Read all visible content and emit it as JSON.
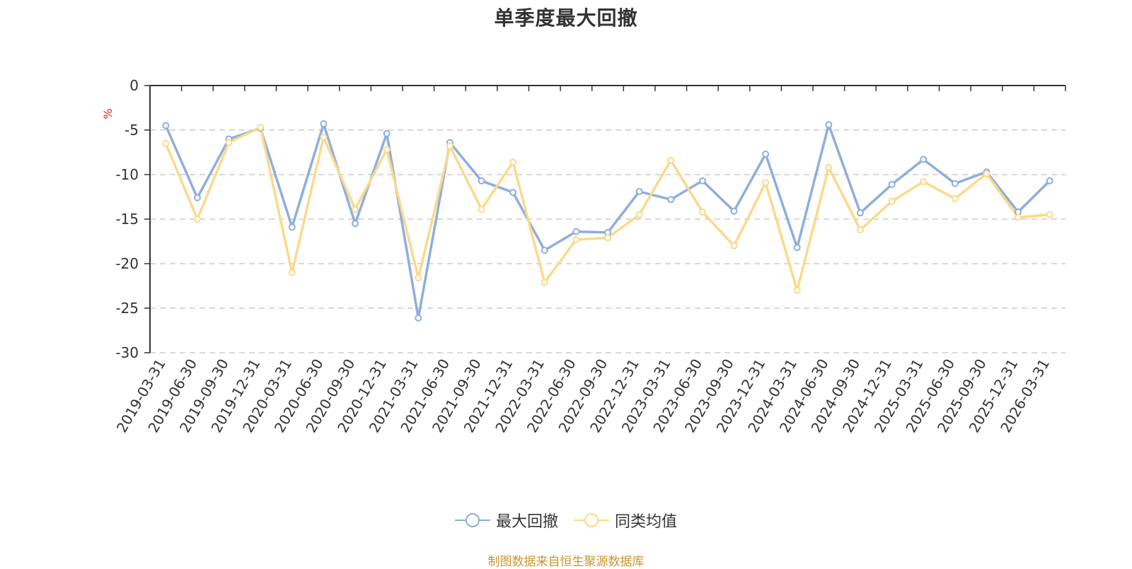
{
  "chart_data": {
    "type": "line",
    "title": "单季度最大回撤",
    "ylabel": "%",
    "ylim": [
      -30,
      0
    ],
    "yticks": [
      0,
      -5,
      -10,
      -15,
      -20,
      -25,
      -30
    ],
    "grid": true,
    "legend_position": "bottom",
    "categories": [
      "2019-03-31",
      "2019-06-30",
      "2019-09-30",
      "2019-12-31",
      "2020-03-31",
      "2020-06-30",
      "2020-09-30",
      "2020-12-31",
      "2021-03-31",
      "2021-06-30",
      "2021-09-30",
      "2021-12-31",
      "2022-03-31",
      "2022-06-30",
      "2022-09-30",
      "2022-12-31",
      "2023-03-31",
      "2023-06-30",
      "2023-09-30",
      "2023-12-31",
      "2024-03-31",
      "2024-06-30",
      "2024-09-30",
      "2024-12-31",
      "2025-03-31",
      "2025-06-30",
      "2025-09-30",
      "2025-12-31",
      "2026-03-31"
    ],
    "series": [
      {
        "name": "最大回撤",
        "color": "#8eaedd",
        "values": [
          -4.5,
          -12.6,
          -6.0,
          -4.8,
          -15.9,
          -4.3,
          -15.5,
          -5.4,
          -26.1,
          -6.4,
          -10.7,
          -12.0,
          -18.5,
          -16.4,
          -16.5,
          -11.9,
          -12.8,
          -10.7,
          -14.1,
          -7.7,
          -18.2,
          -4.4,
          -14.3,
          -11.1,
          -8.3,
          -11.0,
          -9.7,
          -14.2,
          -10.7
        ]
      },
      {
        "name": "同类均值",
        "color": "#fbd98b",
        "values": [
          -6.5,
          -15.0,
          -6.4,
          -4.7,
          -21.0,
          -5.8,
          -13.9,
          -7.2,
          -21.6,
          -6.8,
          -13.9,
          -8.6,
          -22.1,
          -17.3,
          -17.1,
          -14.5,
          -8.4,
          -14.2,
          -18.0,
          -10.9,
          -23.0,
          -9.2,
          -16.2,
          -13.0,
          -10.8,
          -12.7,
          -9.9,
          -14.8,
          -14.5
        ]
      }
    ]
  },
  "source_note": "制图数据来自恒生聚源数据库"
}
